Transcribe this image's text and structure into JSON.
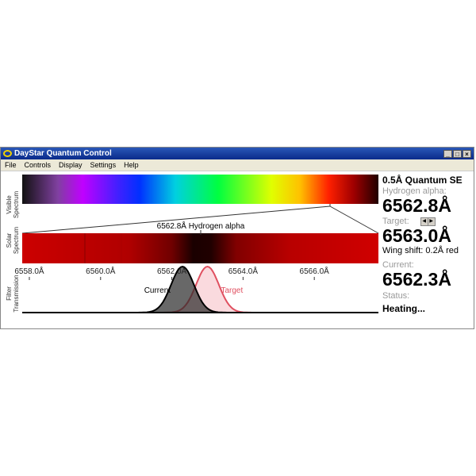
{
  "window": {
    "title": "DayStar Quantum Control",
    "controls": [
      "_",
      "□",
      "×"
    ]
  },
  "menu": [
    "File",
    "Controls",
    "Display",
    "Settings",
    "Help"
  ],
  "labels": {
    "visible": [
      "Visible",
      "Spectrum"
    ],
    "solar": [
      "Solar",
      "Spectrum"
    ],
    "filter": [
      "Filter",
      "Transmission"
    ]
  },
  "zoom_label": "6562.8Å Hydrogen alpha",
  "ticks": [
    "6558.0Å",
    "6560.0Å",
    "6562.0Å",
    "6564.0Å",
    "6566.0Å"
  ],
  "tick_values": [
    6558,
    6560,
    6562,
    6564,
    6566
  ],
  "solar_range": [
    6557.8,
    6567.8
  ],
  "curves": {
    "current": {
      "label": "Current",
      "center": 6562.3,
      "color": "#000000"
    },
    "target": {
      "label": "Target",
      "center": 6563.0,
      "color": "#e05060"
    }
  },
  "panel": {
    "model": "0.5Å Quantum SE",
    "line_label": "Hydrogen alpha:",
    "line_value": "6562.8Å",
    "target_label": "Target:",
    "target_value": "6563.0Å",
    "wing_shift": "Wing shift: 0.2Å red",
    "current_label": "Current:",
    "current_value": "6562.3Å",
    "status_label": "Status:",
    "status_value": "Heating..."
  }
}
